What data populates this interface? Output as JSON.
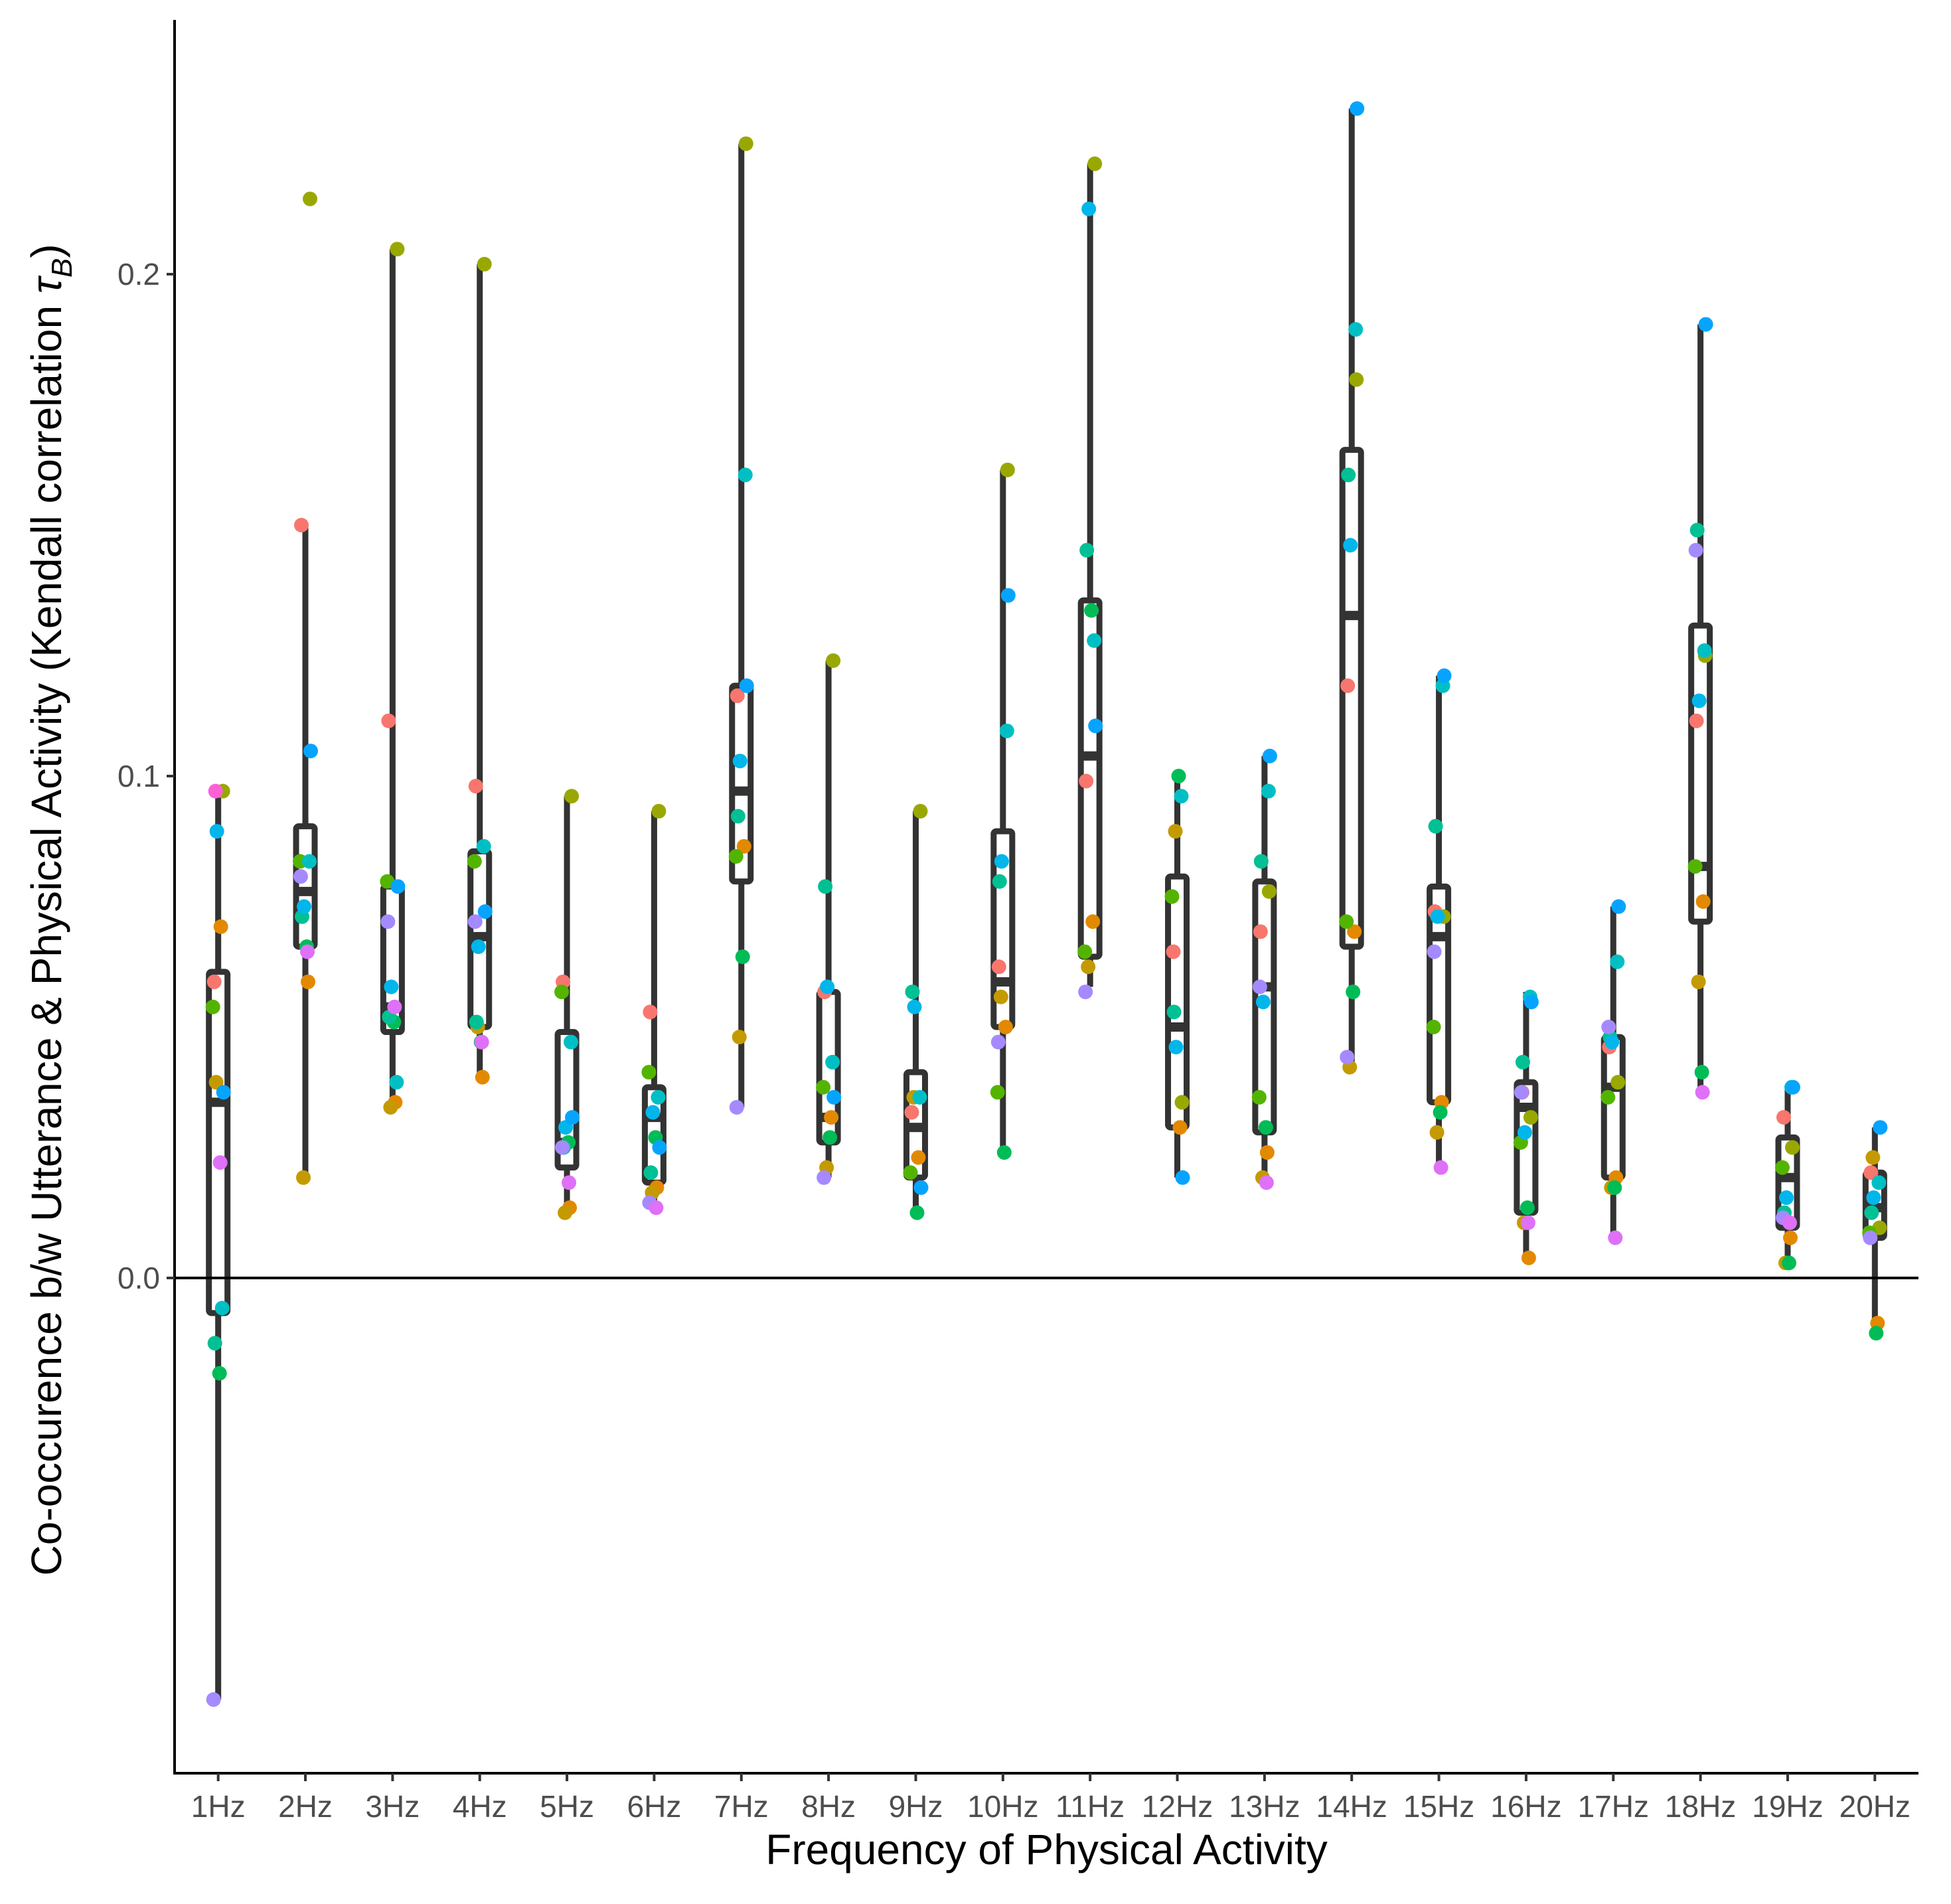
{
  "chart_data": {
    "type": "boxplot_with_points",
    "xlabel": "Frequency of Physical Activity",
    "ylabel_main": "Co-occurence b/w Utterance & Physical Activity (Kendall correlation ",
    "ylabel_symbol": "τ",
    "ylabel_subscript": "B",
    "ylabel_close": ")",
    "ylim": [
      -0.1,
      0.25
    ],
    "yticks": [
      0.0,
      0.1,
      0.2
    ],
    "ytick_labels": [
      "0.0",
      "0.1",
      "0.2"
    ],
    "reference_line_y": 0.0,
    "categories": [
      "1Hz",
      "2Hz",
      "3Hz",
      "4Hz",
      "5Hz",
      "6Hz",
      "7Hz",
      "8Hz",
      "9Hz",
      "10Hz",
      "11Hz",
      "12Hz",
      "13Hz",
      "14Hz",
      "15Hz",
      "16Hz",
      "17Hz",
      "18Hz",
      "19Hz",
      "20Hz"
    ],
    "boxes": [
      {
        "category": "1Hz",
        "whisker_low": -0.084,
        "q1": -0.007,
        "median": 0.035,
        "q3": 0.061,
        "whisker_high": 0.096
      },
      {
        "category": "2Hz",
        "whisker_low": 0.02,
        "q1": 0.066,
        "median": 0.077,
        "q3": 0.09,
        "whisker_high": 0.15
      },
      {
        "category": "3Hz",
        "whisker_low": 0.034,
        "q1": 0.049,
        "median": 0.054,
        "q3": 0.078,
        "whisker_high": 0.205
      },
      {
        "category": "4Hz",
        "whisker_low": 0.04,
        "q1": 0.05,
        "median": 0.068,
        "q3": 0.085,
        "whisker_high": 0.202
      },
      {
        "category": "5Hz",
        "whisker_low": 0.013,
        "q1": 0.022,
        "median": 0.027,
        "q3": 0.049,
        "whisker_high": 0.096
      },
      {
        "category": "6Hz",
        "whisker_low": 0.014,
        "q1": 0.019,
        "median": 0.032,
        "q3": 0.038,
        "whisker_high": 0.093
      },
      {
        "category": "7Hz",
        "whisker_low": 0.034,
        "q1": 0.079,
        "median": 0.097,
        "q3": 0.118,
        "whisker_high": 0.226
      },
      {
        "category": "8Hz",
        "whisker_low": 0.02,
        "q1": 0.027,
        "median": 0.032,
        "q3": 0.057,
        "whisker_high": 0.123
      },
      {
        "category": "9Hz",
        "whisker_low": 0.013,
        "q1": 0.02,
        "median": 0.03,
        "q3": 0.041,
        "whisker_high": 0.093
      },
      {
        "category": "10Hz",
        "whisker_low": 0.025,
        "q1": 0.05,
        "median": 0.059,
        "q3": 0.089,
        "whisker_high": 0.161
      },
      {
        "category": "11Hz",
        "whisker_low": 0.058,
        "q1": 0.064,
        "median": 0.104,
        "q3": 0.135,
        "whisker_high": 0.222
      },
      {
        "category": "12Hz",
        "whisker_low": 0.02,
        "q1": 0.03,
        "median": 0.05,
        "q3": 0.08,
        "whisker_high": 0.1
      },
      {
        "category": "13Hz",
        "whisker_low": 0.02,
        "q1": 0.029,
        "median": 0.058,
        "q3": 0.079,
        "whisker_high": 0.104
      },
      {
        "category": "14Hz",
        "whisker_low": 0.042,
        "q1": 0.066,
        "median": 0.132,
        "q3": 0.165,
        "whisker_high": 0.233
      },
      {
        "category": "15Hz",
        "whisker_low": 0.022,
        "q1": 0.035,
        "median": 0.068,
        "q3": 0.078,
        "whisker_high": 0.12
      },
      {
        "category": "16Hz",
        "whisker_low": 0.004,
        "q1": 0.013,
        "median": 0.034,
        "q3": 0.039,
        "whisker_high": 0.057
      },
      {
        "category": "17Hz",
        "whisker_low": 0.008,
        "q1": 0.02,
        "median": 0.038,
        "q3": 0.048,
        "whisker_high": 0.074
      },
      {
        "category": "18Hz",
        "whisker_low": 0.036,
        "q1": 0.071,
        "median": 0.082,
        "q3": 0.13,
        "whisker_high": 0.19
      },
      {
        "category": "19Hz",
        "whisker_low": 0.003,
        "q1": 0.01,
        "median": 0.02,
        "q3": 0.028,
        "whisker_high": 0.038
      },
      {
        "category": "20Hz",
        "whisker_low": -0.011,
        "q1": 0.008,
        "median": 0.014,
        "q3": 0.021,
        "whisker_high": 0.03
      }
    ],
    "point_colors": [
      "#F8766D",
      "#E38900",
      "#C49A00",
      "#99A800",
      "#53B400",
      "#00BC56",
      "#00C094",
      "#00BFC4",
      "#00B6EB",
      "#06A4FF",
      "#A58AFF",
      "#DF70F8",
      "#FB61D7",
      "#FF66A8"
    ],
    "points": [
      {
        "category": "1Hz",
        "values": [
          0.059,
          0.07,
          0.039,
          0.097,
          0.054,
          -0.019,
          -0.013,
          -0.006,
          0.089,
          0.037,
          -0.084,
          0.023,
          0.097
        ]
      },
      {
        "category": "2Hz",
        "values": [
          0.15,
          0.059,
          0.02,
          0.215,
          0.083,
          0.066,
          0.072,
          0.083,
          0.074,
          0.105,
          0.08,
          0.065
        ]
      },
      {
        "category": "3Hz",
        "values": [
          0.111,
          0.035,
          0.034,
          0.205,
          0.079,
          0.051,
          0.052,
          0.039,
          0.058,
          0.078,
          0.071,
          0.054
        ]
      },
      {
        "category": "4Hz",
        "values": [
          0.098,
          0.04,
          0.05,
          0.202,
          0.083,
          0.047,
          0.051,
          0.086,
          0.066,
          0.073,
          0.071,
          0.047
        ]
      },
      {
        "category": "5Hz",
        "values": [
          0.059,
          0.014,
          0.013,
          0.096,
          0.057,
          0.027,
          0.026,
          0.047,
          0.03,
          0.032,
          0.026,
          0.019
        ]
      },
      {
        "category": "6Hz",
        "values": [
          0.053,
          0.018,
          0.017,
          0.093,
          0.041,
          0.028,
          0.021,
          0.036,
          0.033,
          0.026,
          0.015,
          0.014
        ]
      },
      {
        "category": "7Hz",
        "values": [
          0.116,
          0.086,
          0.048,
          0.226,
          0.084,
          0.064,
          0.092,
          0.16,
          0.103,
          0.118,
          0.034
        ]
      },
      {
        "category": "8Hz",
        "values": [
          0.057,
          0.032,
          0.022,
          0.123,
          0.038,
          0.028,
          0.078,
          0.043,
          0.058,
          0.036,
          0.02
        ]
      },
      {
        "category": "9Hz",
        "values": [
          0.033,
          0.024,
          0.036,
          0.093,
          0.021,
          0.013,
          0.057,
          0.036,
          0.054,
          0.018
        ]
      },
      {
        "category": "10Hz",
        "values": [
          0.062,
          0.05,
          0.056,
          0.161,
          0.037,
          0.025,
          0.079,
          0.109,
          0.083,
          0.136,
          0.047
        ]
      },
      {
        "category": "11Hz",
        "values": [
          0.099,
          0.071,
          0.062,
          0.222,
          0.065,
          0.133,
          0.145,
          0.127,
          0.213,
          0.11,
          0.057
        ]
      },
      {
        "category": "12Hz",
        "values": [
          0.065,
          0.03,
          0.089,
          0.035,
          0.076,
          0.1,
          0.053,
          0.096,
          0.046,
          0.02
        ]
      },
      {
        "category": "13Hz",
        "values": [
          0.069,
          0.025,
          0.02,
          0.077,
          0.036,
          0.03,
          0.083,
          0.097,
          0.055,
          0.104,
          0.058,
          0.019
        ]
      },
      {
        "category": "14Hz",
        "values": [
          0.118,
          0.069,
          0.042,
          0.179,
          0.071,
          0.057,
          0.16,
          0.189,
          0.146,
          0.233,
          0.044
        ]
      },
      {
        "category": "15Hz",
        "values": [
          0.073,
          0.035,
          0.029,
          0.072,
          0.05,
          0.033,
          0.09,
          0.118,
          0.072,
          0.12,
          0.065,
          0.022
        ]
      },
      {
        "category": "16Hz",
        "values": [
          0.037,
          0.004,
          0.011,
          0.032,
          0.027,
          0.014,
          0.043,
          0.056,
          0.029,
          0.055,
          0.037,
          0.011
        ]
      },
      {
        "category": "17Hz",
        "values": [
          0.046,
          0.02,
          0.018,
          0.039,
          0.036,
          0.018,
          0.048,
          0.063,
          0.047,
          0.074,
          0.05,
          0.008
        ]
      },
      {
        "category": "18Hz",
        "values": [
          0.111,
          0.075,
          0.059,
          0.124,
          0.082,
          0.041,
          0.149,
          0.125,
          0.115,
          0.19,
          0.145,
          0.037
        ]
      },
      {
        "category": "19Hz",
        "values": [
          0.032,
          0.008,
          0.003,
          0.026,
          0.022,
          0.003,
          0.013,
          0.038,
          0.016,
          0.038,
          0.012,
          0.011
        ]
      },
      {
        "category": "20Hz",
        "values": [
          0.021,
          -0.009,
          0.024,
          0.01,
          0.009,
          -0.011,
          0.013,
          0.019,
          0.016,
          0.03,
          0.008
        ]
      }
    ]
  }
}
